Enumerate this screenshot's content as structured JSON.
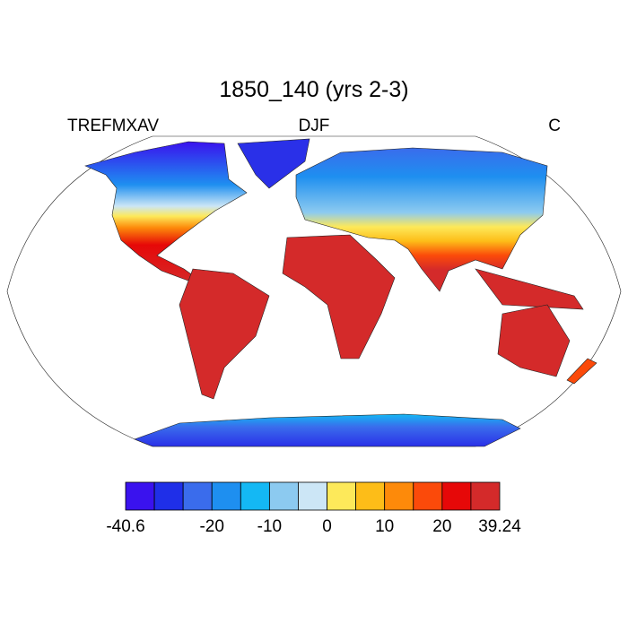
{
  "header": {
    "title": "1850_140 (yrs 2-3)",
    "left": "TREFMXAV",
    "center": "DJF",
    "right": "C"
  },
  "colorbar": {
    "colors": [
      "#3a12ee",
      "#1f2fe8",
      "#3a6cec",
      "#1e8ff0",
      "#14b8f4",
      "#8ccaf0",
      "#cce6f6",
      "#fde95a",
      "#fdbd18",
      "#fd8a0a",
      "#fb4a0a",
      "#e60808",
      "#d42a2a"
    ],
    "boundaries": [
      -40.6,
      null,
      null,
      -20,
      null,
      -10,
      null,
      0,
      null,
      10,
      null,
      20,
      null,
      39.24
    ]
  }
}
